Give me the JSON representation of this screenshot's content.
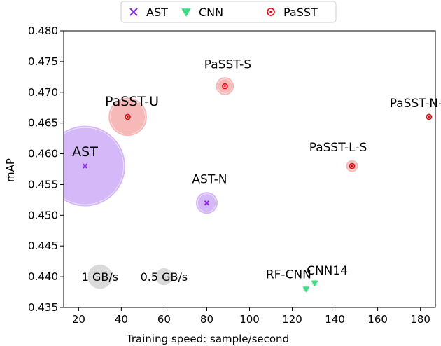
{
  "chart_data": {
    "type": "scatter",
    "xlabel": "Training speed: sample/second",
    "ylabel": "mAP",
    "xlim": [
      13,
      187
    ],
    "ylim": [
      0.435,
      0.48
    ],
    "xticks": [
      20,
      40,
      60,
      80,
      100,
      120,
      140,
      160,
      180
    ],
    "yticks": [
      0.435,
      0.44,
      0.445,
      0.45,
      0.455,
      0.46,
      0.465,
      0.47,
      0.475,
      0.48
    ],
    "grid": false,
    "legend_position": "top-center",
    "legend": [
      {
        "name": "AST",
        "marker": "x",
        "color": "#8a2be2"
      },
      {
        "name": "CNN",
        "marker": "triangle-down",
        "color": "#3ddc84"
      },
      {
        "name": "PaSST",
        "marker": "circle-dot",
        "color": "#e8000b"
      }
    ],
    "points": [
      {
        "label": "AST",
        "series": "AST",
        "x": 23,
        "y": 0.458,
        "bubble_gbps": 10.4
      },
      {
        "label": "AST-N",
        "series": "AST",
        "x": 80,
        "y": 0.452,
        "bubble_gbps": 0.8
      },
      {
        "label": "PaSST-U",
        "series": "PaSST",
        "x": 43,
        "y": 0.466,
        "bubble_gbps": 2.4
      },
      {
        "label": "PaSST-S",
        "series": "PaSST",
        "x": 88.5,
        "y": 0.471,
        "bubble_gbps": 0.55
      },
      {
        "label": "PaSST-N-S",
        "series": "PaSST",
        "x": 184,
        "y": 0.466,
        "bubble_gbps": 0.08
      },
      {
        "label": "PaSST-L-S",
        "series": "PaSST",
        "x": 148,
        "y": 0.458,
        "bubble_gbps": 0.25
      },
      {
        "label": "RF-CNN",
        "series": "CNN",
        "x": 126.5,
        "y": 0.438,
        "bubble_gbps": 0.08
      },
      {
        "label": "CNN14",
        "series": "CNN",
        "x": 130.5,
        "y": 0.439,
        "bubble_gbps": 0.08
      }
    ],
    "size_reference": [
      {
        "label": "1 GB/s",
        "x": 30,
        "y": 0.44,
        "gbps": 1.0
      },
      {
        "label": "0.5 GB/s",
        "x": 60,
        "y": 0.44,
        "gbps": 0.5
      }
    ],
    "colors": {
      "AST": "#8a2be2",
      "AST_bubble": "#c9a6f5",
      "CNN": "#3ddc84",
      "CNN_bubble": "#b7f2cc",
      "PaSST": "#e8000b",
      "PaSST_bubble": "#f5a6a6",
      "reference_bubble": "#d3d3d3"
    }
  }
}
